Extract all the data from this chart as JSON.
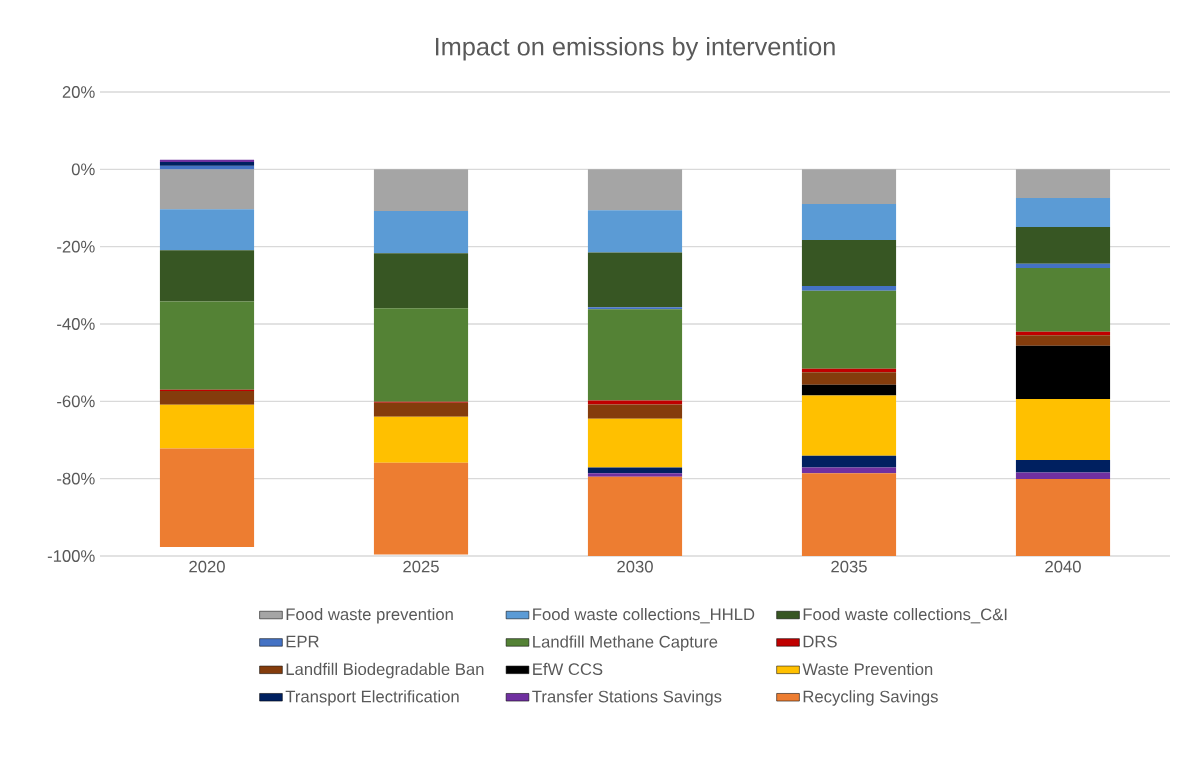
{
  "chart_data": {
    "type": "bar",
    "title": "Impact on emissions by intervention",
    "stacked": true,
    "categories": [
      "2020",
      "2025",
      "2030",
      "2035",
      "2040"
    ],
    "series": [
      {
        "name": "Food waste prevention",
        "color": "#a5a5a5",
        "values": [
          -10.3,
          -10.8,
          -10.6,
          -9.0,
          -7.4
        ]
      },
      {
        "name": "Food waste collections_HHLD",
        "color": "#5b9bd5",
        "values": [
          -10.6,
          -10.9,
          -10.9,
          -9.3,
          -7.5
        ]
      },
      {
        "name": "Food waste collections_C&I",
        "color": "#375623",
        "values": [
          -13.3,
          -14.2,
          -14.2,
          -11.9,
          -9.5
        ]
      },
      {
        "name": "EPR",
        "color": "#4472c4",
        "values": [
          0.9,
          null,
          -0.5,
          -1.2,
          -1.1
        ]
      },
      {
        "name": "Landfill Methane Capture",
        "color": "#548235",
        "values": [
          -22.8,
          -24.2,
          -23.6,
          -20.2,
          -16.5
        ]
      },
      {
        "name": "DRS",
        "color": "#c00000",
        "values": [
          -0.3,
          -0.3,
          -1.0,
          -0.9,
          -0.9
        ]
      },
      {
        "name": "Landfill Biodegradable Ban",
        "color": "#843c0c",
        "values": [
          -3.6,
          -3.6,
          -3.7,
          -3.2,
          -2.7
        ]
      },
      {
        "name": "EfW CCS",
        "color": "#000000",
        "values": [
          null,
          null,
          null,
          -2.8,
          -13.8
        ]
      },
      {
        "name": "Waste Prevention",
        "color": "#ffc000",
        "values": [
          -11.3,
          -11.9,
          -12.6,
          -15.6,
          -15.8
        ]
      },
      {
        "name": "Transport Electrification",
        "color": "#002060",
        "values": [
          1.0,
          null,
          -1.5,
          -3.0,
          -3.2
        ]
      },
      {
        "name": "Transfer Stations Savings",
        "color": "#7030a0",
        "values": [
          0.6,
          null,
          -0.9,
          -1.5,
          -1.7
        ]
      },
      {
        "name": "Recycling Savings",
        "color": "#ed7d31",
        "values": [
          -25.5,
          -23.7,
          -20.5,
          -21.4,
          -19.9
        ]
      }
    ],
    "ylim": [
      -100,
      20
    ],
    "yticks": [
      {
        "value": -100,
        "label": "-100%"
      },
      {
        "value": -80,
        "label": "-80%"
      },
      {
        "value": -60,
        "label": "-60%"
      },
      {
        "value": -40,
        "label": "-40%"
      },
      {
        "value": -20,
        "label": "-20%"
      },
      {
        "value": 0,
        "label": "0%"
      },
      {
        "value": 20,
        "label": "20%"
      }
    ],
    "grid": "y",
    "legend": "bottom"
  }
}
